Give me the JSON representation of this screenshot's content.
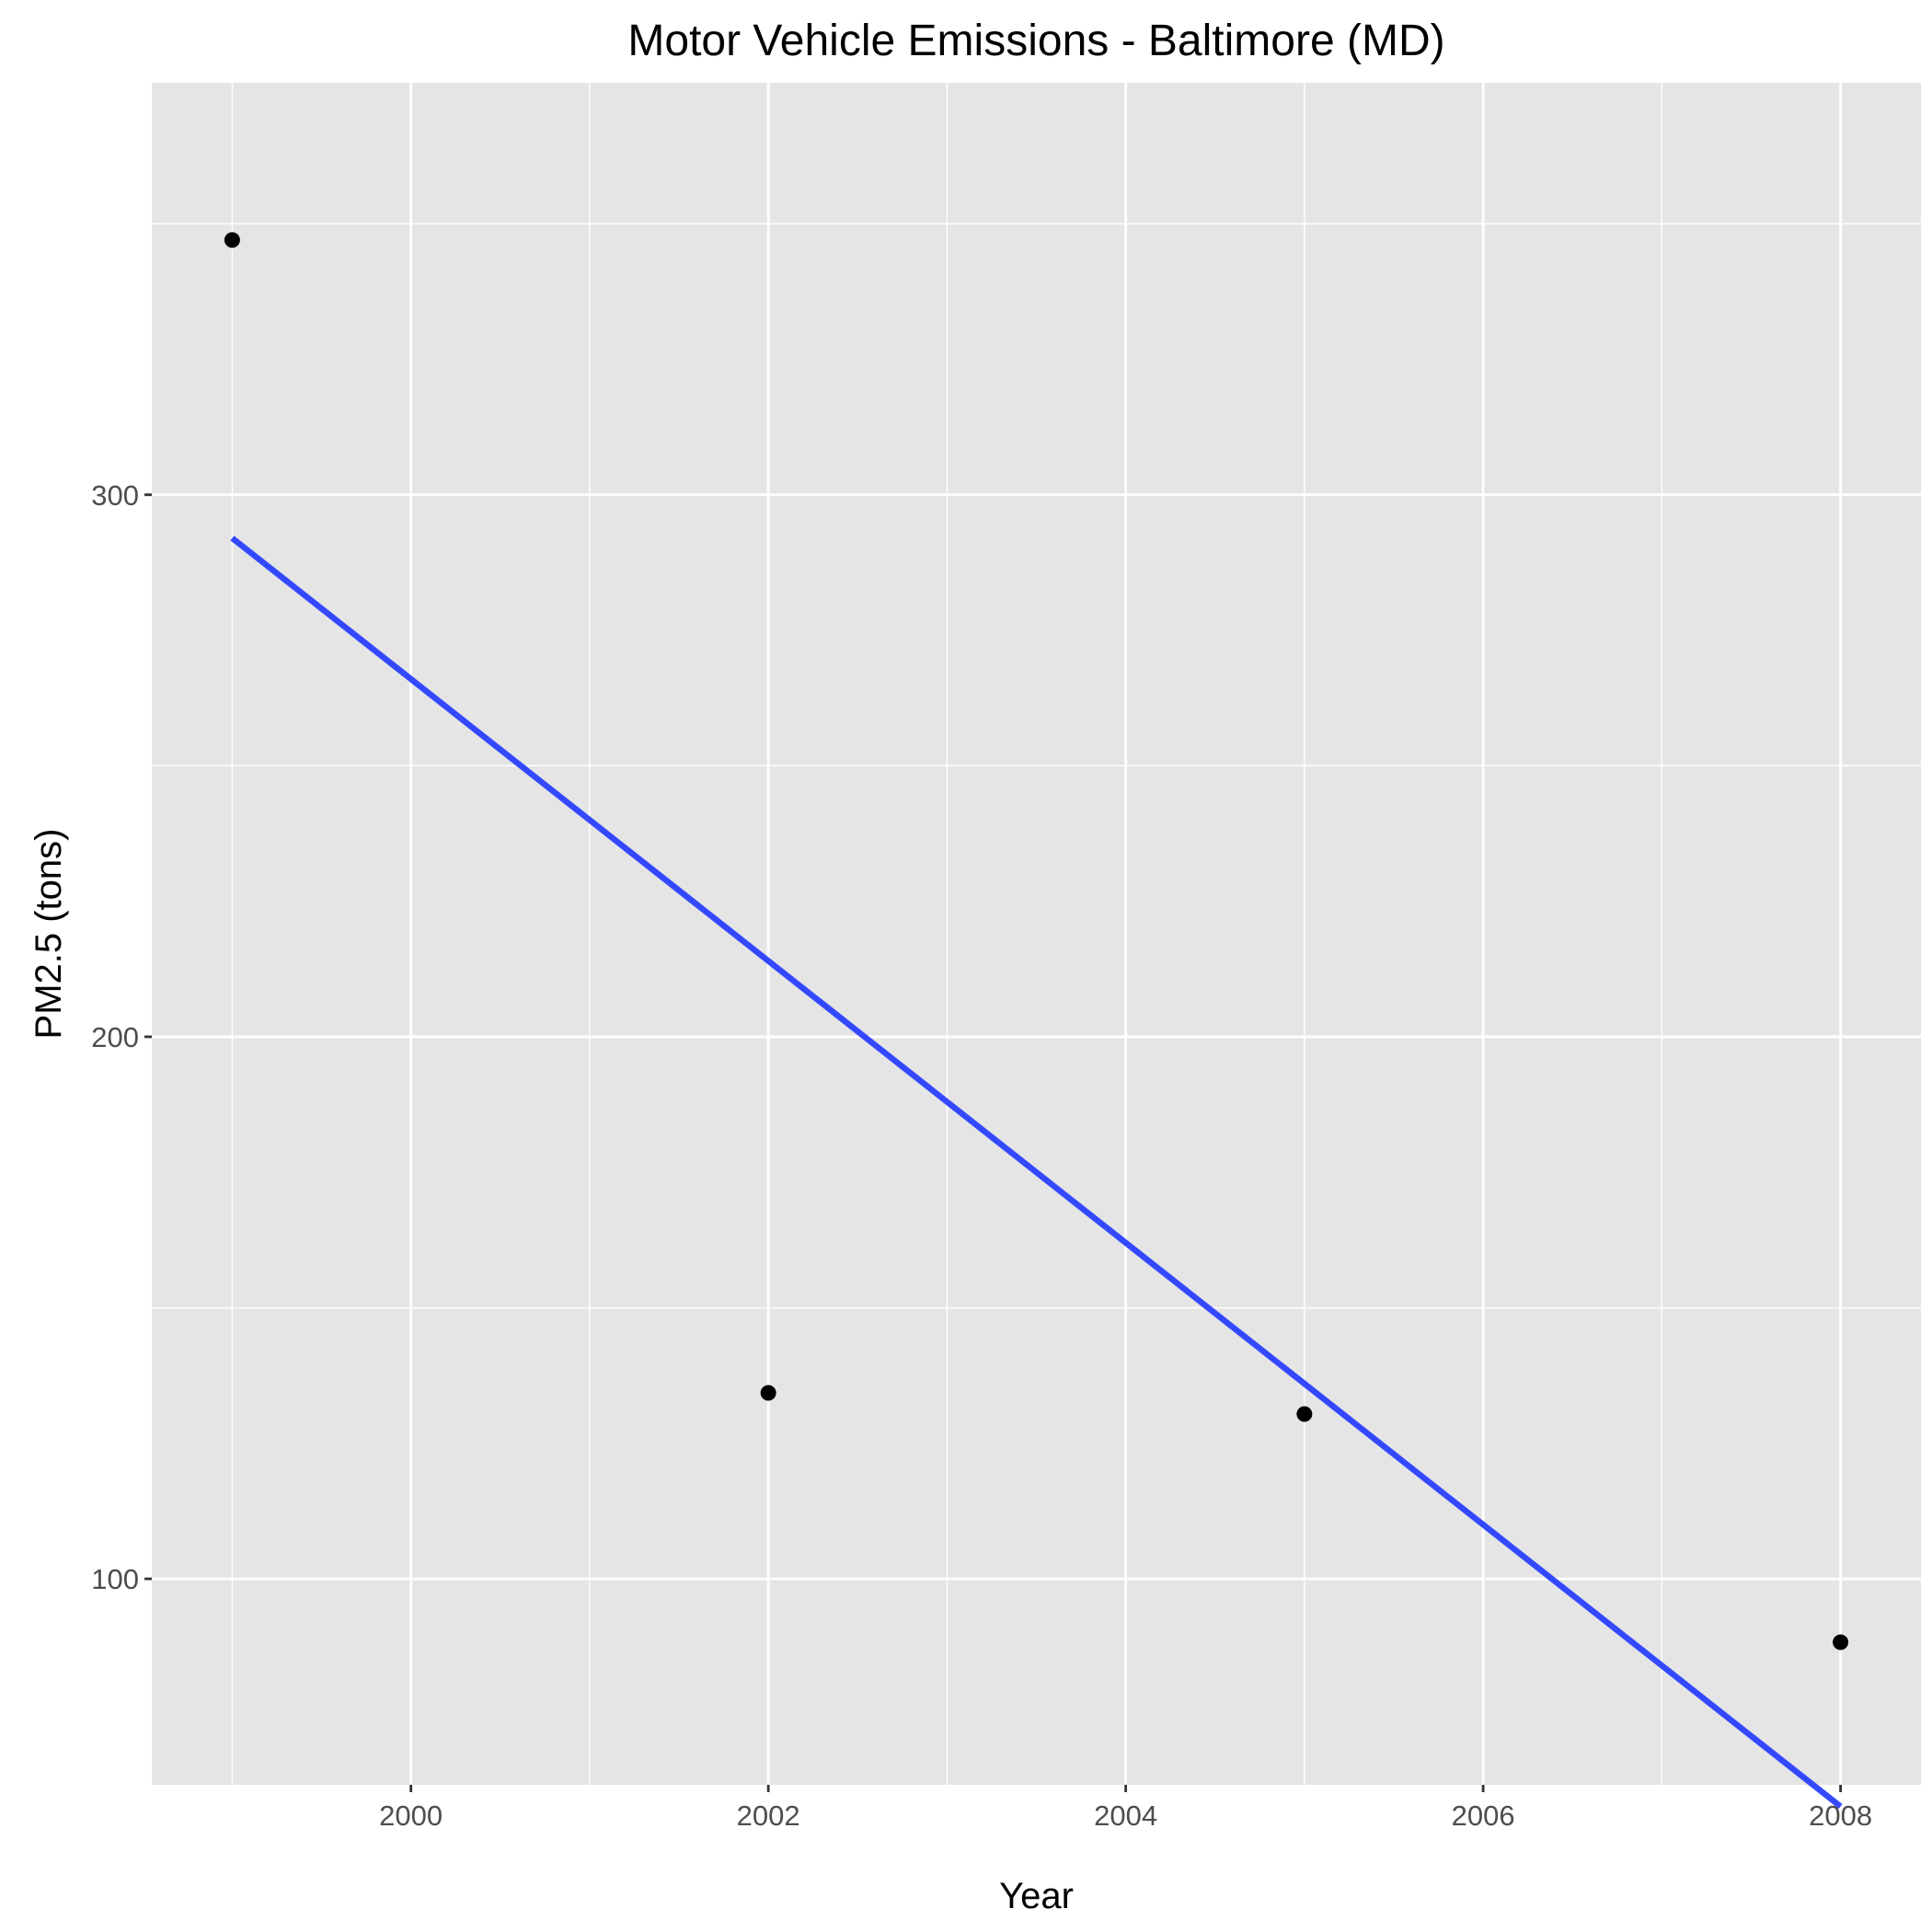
{
  "chart_data": {
    "type": "scatter",
    "title": "Motor Vehicle Emissions - Baltimore (MD)",
    "xlabel": "Year",
    "ylabel": "PM2.5 (tons)",
    "xlim": [
      1998.55,
      2008.45
    ],
    "ylim": [
      62,
      376
    ],
    "x_ticks": [
      2000,
      2002,
      2004,
      2006,
      2008
    ],
    "y_ticks": [
      100,
      200,
      300
    ],
    "grid": true,
    "legend": "none",
    "panel_background": "#e5e5e5",
    "grid_color": "#ffffff",
    "point_color": "#000000",
    "series": [
      {
        "kind": "points",
        "x": [
          1999,
          2002,
          2005,
          2008
        ],
        "y": [
          347,
          134.3,
          130.4,
          88.3
        ]
      },
      {
        "kind": "line",
        "color": "#3348ff",
        "x": [
          1999,
          2008
        ],
        "y": [
          292,
          58
        ]
      }
    ]
  }
}
